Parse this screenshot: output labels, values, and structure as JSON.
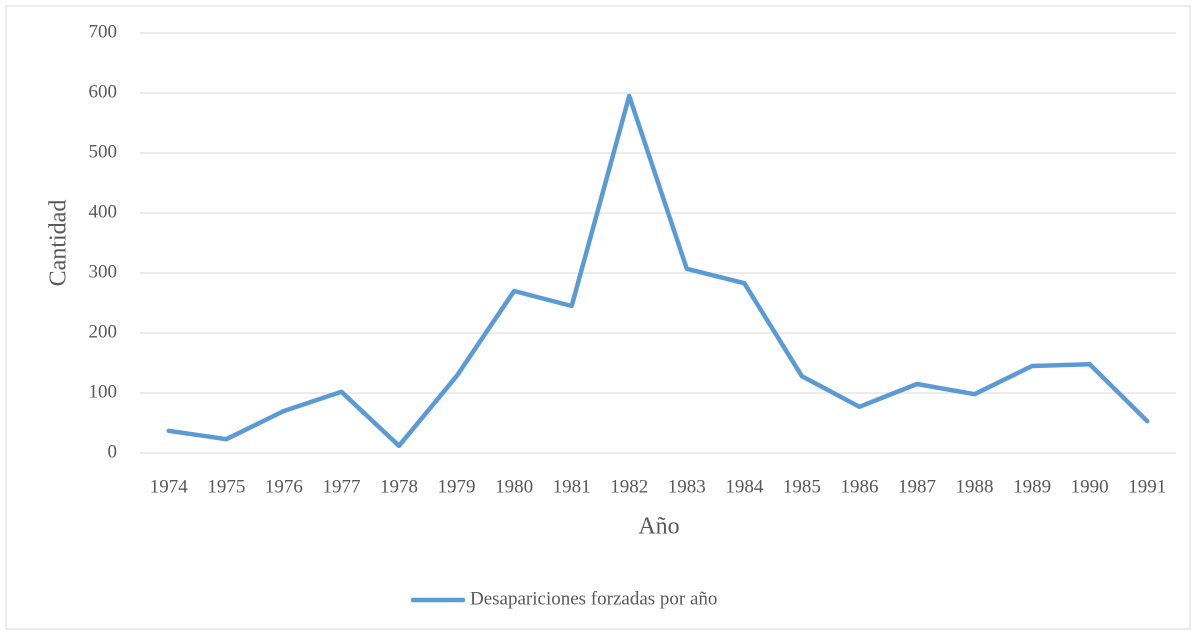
{
  "chart_data": {
    "type": "line",
    "xlabel": "Año",
    "ylabel": "Cantidad",
    "categories": [
      "1974",
      "1975",
      "1976",
      "1977",
      "1978",
      "1979",
      "1980",
      "1981",
      "1982",
      "1983",
      "1984",
      "1985",
      "1986",
      "1987",
      "1988",
      "1989",
      "1990",
      "1991"
    ],
    "series": [
      {
        "name": "Desapariciones forzadas por año",
        "color": "#5b9bd5",
        "values": [
          37,
          23,
          70,
          102,
          12,
          128,
          270,
          245,
          595,
          307,
          283,
          128,
          77,
          115,
          98,
          145,
          148,
          53
        ]
      }
    ],
    "ylim": [
      0,
      700
    ],
    "yticks": [
      0,
      100,
      200,
      300,
      400,
      500,
      600,
      700
    ],
    "grid": true,
    "legend": "bottom"
  }
}
